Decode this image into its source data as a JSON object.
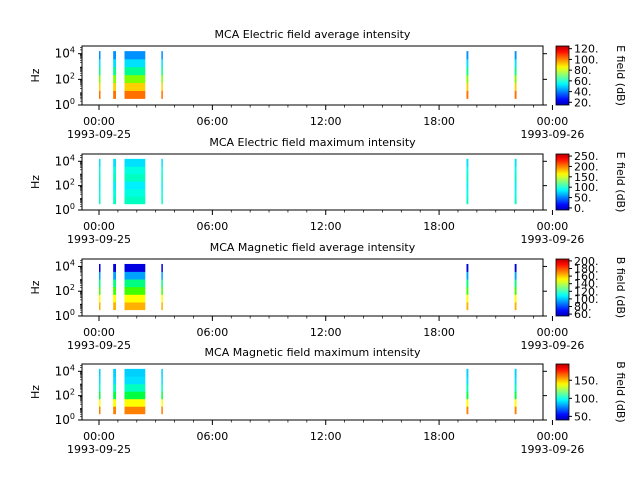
{
  "chart_data": [
    {
      "type": "heatmap",
      "title": "MCA  Electric field average intensity",
      "ylabel": "Hz",
      "colorbar_label": "E field (dB)",
      "colorbar_ticks": [
        "20.",
        "40.",
        "60.",
        "80.",
        "100.",
        "120."
      ],
      "colorbar_range": [
        15,
        125
      ],
      "active_periods_hours": [
        [
          0.0,
          0.05
        ],
        [
          0.75,
          0.9
        ],
        [
          1.35,
          2.45
        ],
        [
          3.3,
          3.35
        ],
        [
          19.45,
          19.55
        ],
        [
          22.0,
          22.1
        ]
      ],
      "band_colors": [
        "#ff7000",
        "#ffd000",
        "#80ff00",
        "#00ff90",
        "#00e0ff",
        "#0090ff"
      ]
    },
    {
      "type": "heatmap",
      "title": "MCA  Electric field maximum intensity",
      "ylabel": "Hz",
      "colorbar_label": "E field (dB)",
      "colorbar_ticks": [
        "0.",
        "50.",
        "100.",
        "150.",
        "200.",
        "250."
      ],
      "colorbar_range": [
        -10,
        260
      ],
      "active_periods_hours": [
        [
          0.0,
          0.05
        ],
        [
          0.75,
          0.9
        ],
        [
          1.35,
          2.45
        ],
        [
          3.3,
          3.35
        ],
        [
          19.45,
          19.55
        ],
        [
          22.0,
          22.1
        ]
      ],
      "band_colors": [
        "#00ffc0",
        "#00ffe0",
        "#00f0ff",
        "#00ffc0",
        "#00ffe0",
        "#00e0ff"
      ]
    },
    {
      "type": "heatmap",
      "title": "MCA  Magnetic field average intensity",
      "ylabel": "Hz",
      "colorbar_label": "B field (dB)",
      "colorbar_ticks": [
        "60.",
        "80.",
        "100.",
        "120.",
        "140.",
        "160.",
        "180.",
        "200."
      ],
      "colorbar_range": [
        55,
        205
      ],
      "active_periods_hours": [
        [
          0.0,
          0.05
        ],
        [
          0.75,
          0.9
        ],
        [
          1.35,
          2.45
        ],
        [
          3.3,
          3.35
        ],
        [
          19.45,
          19.55
        ],
        [
          22.0,
          22.1
        ]
      ],
      "band_colors": [
        "#ffb000",
        "#ffff00",
        "#40ff00",
        "#00ff80",
        "#00a0ff",
        "#0000e0"
      ]
    },
    {
      "type": "heatmap",
      "title": "MCA  Magnetic field maximum intensity",
      "ylabel": "Hz",
      "colorbar_label": "B field (dB)",
      "colorbar_ticks": [
        "50.",
        "100.",
        "150."
      ],
      "colorbar_range": [
        40,
        195
      ],
      "active_periods_hours": [
        [
          0.0,
          0.05
        ],
        [
          0.75,
          0.9
        ],
        [
          1.35,
          2.45
        ],
        [
          3.3,
          3.35
        ],
        [
          19.45,
          19.55
        ],
        [
          22.0,
          22.1
        ]
      ],
      "band_colors": [
        "#ff8000",
        "#ffff00",
        "#00ff40",
        "#00ffc0",
        "#00e0ff",
        "#00d0ff"
      ]
    }
  ],
  "x_axis": {
    "range_hours": [
      -0.9,
      23.5
    ],
    "ticks": [
      {
        "hour": 0,
        "label": "00:00",
        "sublabel": "1993-09-25"
      },
      {
        "hour": 6,
        "label": "06:00",
        "sublabel": ""
      },
      {
        "hour": 12,
        "label": "12:00",
        "sublabel": ""
      },
      {
        "hour": 18,
        "label": "18:00",
        "sublabel": ""
      },
      {
        "hour": 24,
        "label": "00:00",
        "sublabel": "1993-09-26"
      }
    ]
  },
  "y_axis": {
    "log_range": [
      0,
      4.6
    ],
    "ticks": [
      {
        "exp": 0,
        "base": "10",
        "power": "0"
      },
      {
        "exp": 2,
        "base": "10",
        "power": "2"
      },
      {
        "exp": 4,
        "base": "10",
        "power": "4"
      }
    ]
  }
}
